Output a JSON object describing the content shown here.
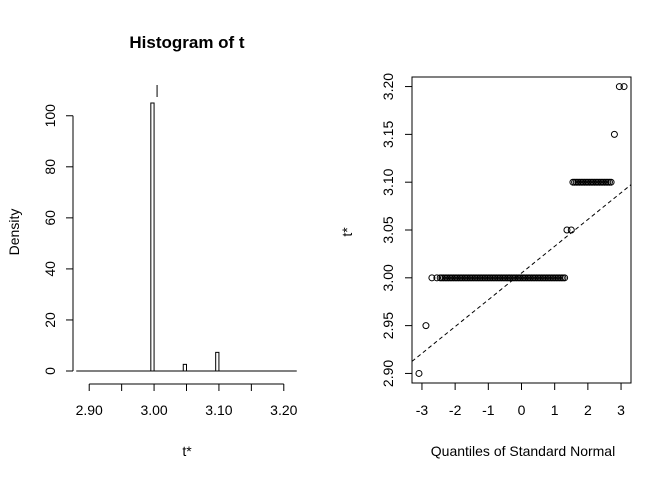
{
  "chart_data": [
    {
      "type": "bar",
      "title": "Histogram of t",
      "xlabel": "t*",
      "ylabel": "Density",
      "xlim": [
        2.875,
        3.225
      ],
      "ylim": [
        0,
        105
      ],
      "x_ticks": [
        2.9,
        2.95,
        3.0,
        3.05,
        3.1,
        3.15,
        3.2
      ],
      "x_tick_labels": [
        "2.90",
        "",
        "3.00",
        "",
        "3.10",
        "",
        "3.20"
      ],
      "y_ticks": [
        0,
        20,
        40,
        60,
        80,
        100
      ],
      "y_tick_labels": [
        "0",
        "20",
        "40",
        "60",
        "80",
        "100"
      ],
      "bins": [
        {
          "x0": 2.995,
          "x1": 3.0,
          "density": 105
        },
        {
          "x0": 3.045,
          "x1": 3.05,
          "density": 2.6
        },
        {
          "x0": 3.095,
          "x1": 3.1,
          "density": 7.3
        }
      ],
      "baseline_range": [
        2.88,
        3.22
      ],
      "reference_line_x": 3.0
    },
    {
      "type": "scatter",
      "title": "",
      "xlabel": "Quantiles of Standard Normal",
      "ylabel": "t*",
      "xlim": [
        -3.3,
        3.3
      ],
      "ylim": [
        2.89,
        3.21
      ],
      "x_ticks": [
        -3,
        -2,
        -1,
        0,
        1,
        2,
        3
      ],
      "x_tick_labels": [
        "-3",
        "-2",
        "-1",
        "0",
        "1",
        "2",
        "3"
      ],
      "y_ticks": [
        2.9,
        2.95,
        3.0,
        3.05,
        3.1,
        3.15,
        3.2
      ],
      "y_tick_labels": [
        "2.90",
        "2.95",
        "3.00",
        "3.05",
        "3.10",
        "3.15",
        "3.20"
      ],
      "reference_line": {
        "intercept": 3.005,
        "slope": 0.028
      },
      "points": [
        {
          "x": -3.09,
          "y": 2.9
        },
        {
          "x": -2.88,
          "y": 2.95
        },
        {
          "x": -2.7,
          "y": 3.0
        },
        {
          "x": -2.55,
          "y": 3.0
        },
        {
          "x": 1.37,
          "y": 3.05
        },
        {
          "x": 1.5,
          "y": 3.05
        },
        {
          "x": 2.8,
          "y": 3.15
        },
        {
          "x": 2.95,
          "y": 3.2
        },
        {
          "x": 3.09,
          "y": 3.2
        }
      ],
      "dense_runs": [
        {
          "y": 3.0,
          "x_from": -2.45,
          "x_to": 1.33,
          "step": 0.05
        },
        {
          "y": 3.1,
          "x_from": 1.55,
          "x_to": 2.7,
          "step": 0.05
        }
      ]
    }
  ]
}
